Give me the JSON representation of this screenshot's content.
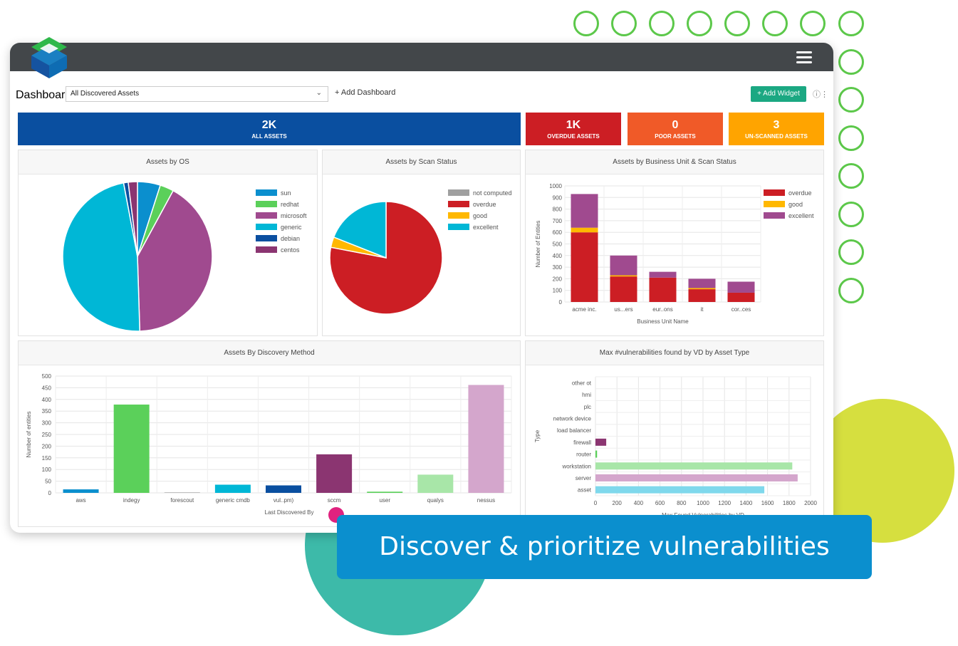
{
  "header": {
    "menu_icon": "hamburger-icon"
  },
  "toolbar": {
    "dashboard_label": "Dashboard:",
    "dashboard_value": "All Discovered Assets",
    "add_dashboard": "+ Add Dashboard",
    "add_widget": "+ Add Widget",
    "info_icon": "info-icon"
  },
  "kpis": [
    {
      "value": "2K",
      "label": "ALL ASSETS",
      "color": "#0a4fa0"
    },
    {
      "value": "1K",
      "label": "OVERDUE ASSETS",
      "color": "#cc1e24"
    },
    {
      "value": "0",
      "label": "POOR ASSETS",
      "color": "#f05a28"
    },
    {
      "value": "3",
      "label": "UN-SCANNED ASSETS",
      "color": "#ffa400"
    }
  ],
  "banner": {
    "text": "Discover & prioritize vulnerabilities"
  },
  "chart_data": [
    {
      "type": "pie",
      "title": "Assets by OS",
      "categories": [
        "sun",
        "redhat",
        "microsoft",
        "generic",
        "debian",
        "centos"
      ],
      "values": [
        5,
        3,
        42,
        48,
        1,
        2
      ],
      "colors": [
        "#0b8fce",
        "#5bd05a",
        "#a04a8f",
        "#00b7d6",
        "#0a4fa0",
        "#8b3571"
      ],
      "legend": "right"
    },
    {
      "type": "pie",
      "title": "Assets by Scan Status",
      "categories": [
        "not computed",
        "overdue",
        "good",
        "excellent"
      ],
      "values": [
        0,
        78,
        3,
        19
      ],
      "colors": [
        "#a0a0a0",
        "#cc1e24",
        "#ffb800",
        "#00b7d6"
      ],
      "legend": "right"
    },
    {
      "type": "bar",
      "stacked": true,
      "title": "Assets by Business Unit & Scan Status",
      "categories": [
        "acme inc.",
        "us...ers",
        "eur..ons",
        "it",
        "cor..ces"
      ],
      "series": [
        {
          "name": "overdue",
          "values": [
            600,
            220,
            210,
            110,
            80
          ],
          "color": "#cc1e24"
        },
        {
          "name": "good",
          "values": [
            40,
            10,
            0,
            10,
            0
          ],
          "color": "#ffb800"
        },
        {
          "name": "excellent",
          "values": [
            290,
            170,
            50,
            80,
            95
          ],
          "color": "#a04a8f"
        }
      ],
      "xlabel": "Business Unit Name",
      "ylabel": "Number of Entities",
      "ylim": [
        0,
        1000
      ],
      "yticks": [
        0,
        100,
        200,
        300,
        400,
        500,
        600,
        700,
        800,
        900,
        1000
      ],
      "legend": "top-right",
      "grid": true
    },
    {
      "type": "bar",
      "title": "Assets By Discovery Method",
      "categories": [
        "aws",
        "indegy",
        "forescout",
        "generic cmdb",
        "vul..pm)",
        "sccm",
        "user",
        "qualys",
        "nessus"
      ],
      "values": [
        15,
        378,
        2,
        35,
        32,
        165,
        5,
        78,
        462
      ],
      "colors": [
        "#0b8fce",
        "#5bd05a",
        "#a0a0a0",
        "#00b7d6",
        "#0a4fa0",
        "#8b3571",
        "#5bd05a",
        "#a8e6a8",
        "#d4a6cc"
      ],
      "xlabel": "Last Discovered By",
      "ylabel": "Number of entities",
      "ylim": [
        0,
        500
      ],
      "yticks": [
        0,
        50,
        100,
        150,
        200,
        250,
        300,
        350,
        400,
        450,
        500
      ],
      "grid": true
    },
    {
      "type": "bar",
      "orientation": "horizontal",
      "title": "Max #vulnerabilities found by VD by Asset Type",
      "categories": [
        "other ot",
        "hmi",
        "plc",
        "network device",
        "load balancer",
        "firewall",
        "router",
        "workstation",
        "server",
        "asset"
      ],
      "values": [
        0,
        0,
        0,
        0,
        0,
        100,
        15,
        1830,
        1880,
        1570
      ],
      "colors": [
        "#a0a0a0",
        "#a0a0a0",
        "#a0a0a0",
        "#a0a0a0",
        "#a0a0a0",
        "#8b3571",
        "#5bd05a",
        "#a8e6a8",
        "#d4a6cc",
        "#7fd8ec"
      ],
      "xlabel": "Max Found Vulnerabilities by VD",
      "ylabel": "Type",
      "xlim": [
        0,
        2000
      ],
      "xticks": [
        0,
        200,
        400,
        600,
        800,
        1000,
        1200,
        1400,
        1600,
        1800,
        2000
      ],
      "grid": true
    }
  ]
}
